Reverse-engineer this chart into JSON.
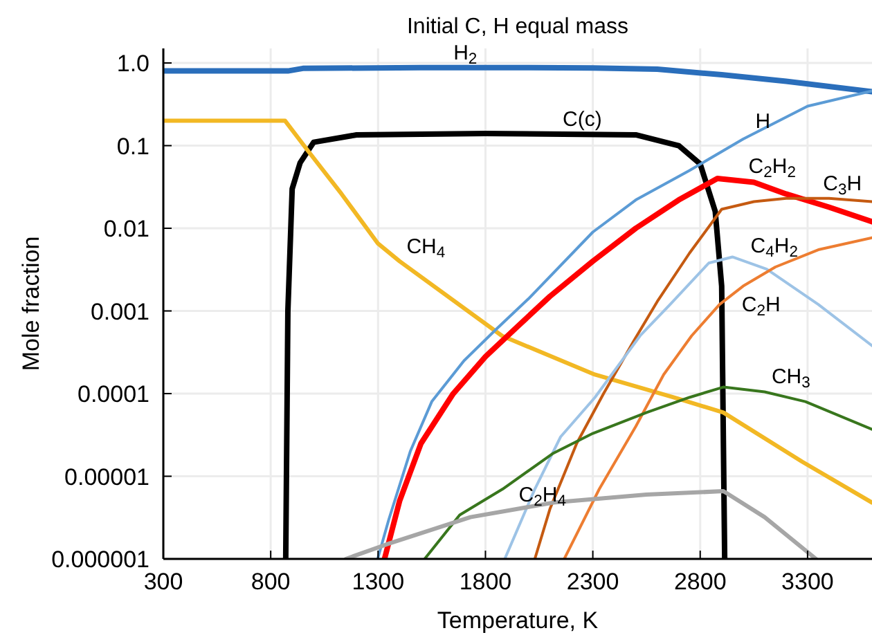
{
  "chart_data": {
    "type": "line",
    "title": "Initial C, H equal mass",
    "xlabel": "Temperature, K",
    "ylabel": "Mole fraction",
    "log": "y",
    "grid": true,
    "line_style": "solid",
    "xlim": [
      300,
      3600
    ],
    "xticks": [
      300,
      800,
      1300,
      1800,
      2300,
      2800,
      3300
    ],
    "ylim": [
      1e-06,
      1.5
    ],
    "yticks": [
      {
        "value": 1,
        "label": "1.0"
      },
      {
        "value": 0.1,
        "label": "0.1"
      },
      {
        "value": 0.01,
        "label": "0.01"
      },
      {
        "value": 0.001,
        "label": "0.001"
      },
      {
        "value": 0.0001,
        "label": "0.0001"
      },
      {
        "value": 1e-05,
        "label": "0.00001"
      },
      {
        "value": 1e-06,
        "label": "0.000001"
      }
    ],
    "series": [
      {
        "name": "H$_{2}$",
        "color": "#2a6ebb",
        "x": [
          300,
          880,
          950,
          1500,
          2000,
          2300,
          2600,
          2900,
          3200,
          3600
        ],
        "values": [
          0.8,
          0.8,
          0.86,
          0.88,
          0.88,
          0.87,
          0.84,
          0.72,
          0.6,
          0.45
        ]
      },
      {
        "name": "C(c)",
        "color": "#000000",
        "x": [
          870,
          880,
          900,
          937,
          1000,
          1200,
          1800,
          2500,
          2700,
          2800,
          2870,
          2900,
          2914
        ],
        "values": [
          1e-06,
          0.001,
          0.03,
          0.062,
          0.11,
          0.135,
          0.14,
          0.135,
          0.1,
          0.06,
          0.016,
          0.002,
          1e-06
        ]
      },
      {
        "name": "CH$_{4}$",
        "color": "#f2b824",
        "x": [
          300,
          867,
          976,
          1130,
          1298,
          1400,
          1877,
          2309,
          2695,
          2908,
          3275,
          3600
        ],
        "values": [
          0.2,
          0.2,
          0.085,
          0.026,
          0.0066,
          0.004,
          0.0005,
          0.00017,
          8.7e-05,
          5.9e-05,
          1.5e-05,
          4.8e-06
        ]
      },
      {
        "name": "H",
        "color": "#5b9bd5",
        "x": [
          1298,
          1350,
          1450,
          1550,
          1700,
          1850,
          2000,
          2300,
          2500,
          2750,
          3000,
          3300,
          3600
        ],
        "values": [
          1e-06,
          3e-06,
          2e-05,
          8e-05,
          0.00025,
          0.0006,
          0.0014,
          0.009,
          0.022,
          0.05,
          0.12,
          0.3,
          0.46
        ]
      },
      {
        "name": "C$_{2}$H$_{2}$",
        "color": "#ff0000",
        "x": [
          1330,
          1400,
          1500,
          1650,
          1800,
          1950,
          2100,
          2300,
          2500,
          2700,
          2880,
          3050,
          3200,
          3400,
          3600
        ],
        "values": [
          1e-06,
          5e-06,
          2.5e-05,
          0.0001,
          0.00028,
          0.00065,
          0.0015,
          0.004,
          0.01,
          0.022,
          0.04,
          0.036,
          0.026,
          0.018,
          0.012
        ]
      },
      {
        "name": "C$_{3}$H",
        "color": "#c55a11",
        "x": [
          2030,
          2100,
          2225,
          2350,
          2490,
          2600,
          2750,
          2900,
          3050,
          3200,
          3400,
          3600
        ],
        "values": [
          1e-06,
          4e-06,
          2.5e-05,
          0.0001,
          0.00043,
          0.0013,
          0.005,
          0.017,
          0.021,
          0.023,
          0.023,
          0.021
        ]
      },
      {
        "name": "C$_{4}$H$_{2}$",
        "color": "#9dc3e6",
        "x": [
          1890,
          2030,
          2150,
          2310,
          2520,
          2660,
          2840,
          2950,
          3110,
          3350,
          3600
        ],
        "values": [
          1e-06,
          7e-06,
          3e-05,
          9e-05,
          0.0005,
          0.0012,
          0.0038,
          0.0045,
          0.0032,
          0.0012,
          0.00038
        ]
      },
      {
        "name": "C$_{2}$H",
        "color": "#ed7d31",
        "x": [
          2167,
          2330,
          2500,
          2630,
          2760,
          2890,
          3000,
          3150,
          3350,
          3600
        ],
        "values": [
          1e-06,
          7e-06,
          4e-05,
          0.00017,
          0.0005,
          0.0012,
          0.002,
          0.0034,
          0.0055,
          0.0077
        ]
      },
      {
        "name": "CH$_{3}$",
        "color": "#38761d",
        "x": [
          1517,
          1680,
          1880,
          2116,
          2300,
          2550,
          2750,
          2908,
          3100,
          3290,
          3600
        ],
        "values": [
          1e-06,
          3.4e-06,
          7e-06,
          1.9e-05,
          3.3e-05,
          5.9e-05,
          9e-05,
          0.00012,
          0.000105,
          8e-05,
          3.7e-05
        ]
      },
      {
        "name": "C$_{2}$H$_{4}$",
        "color": "#a6a6a6",
        "x": [
          1150,
          1340,
          1730,
          2116,
          2550,
          2908,
          3100,
          3339
        ],
        "values": [
          1e-06,
          1.5e-06,
          3.2e-06,
          4.8e-06,
          6e-06,
          6.6e-06,
          3.2e-06,
          1e-06
        ]
      }
    ]
  }
}
